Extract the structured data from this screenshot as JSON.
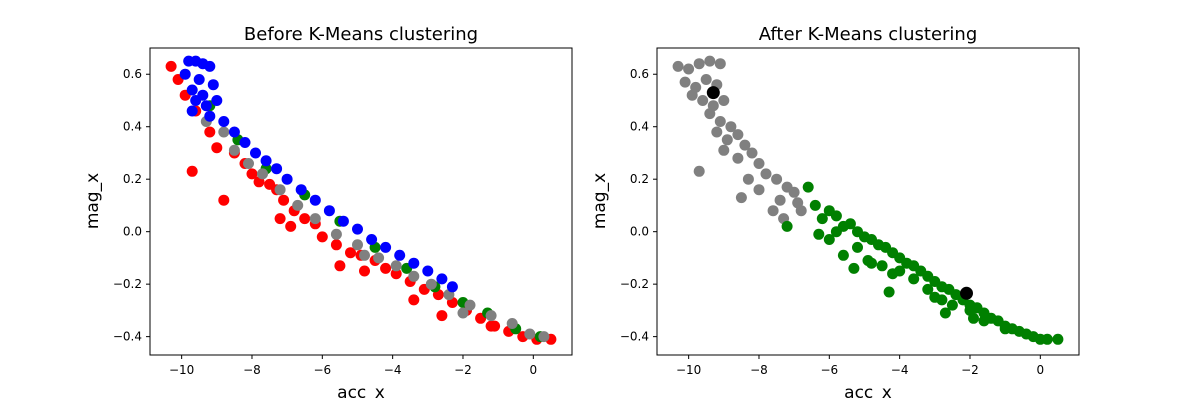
{
  "chart_data": [
    {
      "type": "scatter",
      "title": "Before K-Means clustering",
      "xlabel": "acc_x",
      "ylabel": "mag_x",
      "xlim": [
        -10.9,
        1.1
      ],
      "ylim": [
        -0.47,
        0.7
      ],
      "xticks": [
        -10,
        -8,
        -6,
        -4,
        -2,
        0
      ],
      "yticks": [
        -0.4,
        -0.2,
        0.0,
        0.2,
        0.4,
        0.6
      ],
      "xtick_labels": [
        "−10",
        "−8",
        "−6",
        "−4",
        "−2",
        "0"
      ],
      "ytick_labels": [
        "−0.4",
        "−0.2",
        "0.0",
        "0.2",
        "0.4",
        "0.6"
      ],
      "grid": false,
      "series": [
        {
          "color": "#ff0000",
          "points": [
            [
              -10.3,
              0.63
            ],
            [
              -10.1,
              0.58
            ],
            [
              -9.9,
              0.52
            ],
            [
              -9.6,
              0.46
            ],
            [
              -9.2,
              0.38
            ],
            [
              -9.0,
              0.32
            ],
            [
              -9.7,
              0.23
            ],
            [
              -8.5,
              0.3
            ],
            [
              -8.2,
              0.26
            ],
            [
              -8.0,
              0.22
            ],
            [
              -7.8,
              0.19
            ],
            [
              -7.5,
              0.18
            ],
            [
              -7.3,
              0.16
            ],
            [
              -7.1,
              0.12
            ],
            [
              -6.8,
              0.08
            ],
            [
              -6.5,
              0.05
            ],
            [
              -6.2,
              0.03
            ],
            [
              -6.0,
              -0.02
            ],
            [
              -5.6,
              -0.05
            ],
            [
              -5.2,
              -0.08
            ],
            [
              -4.9,
              -0.09
            ],
            [
              -4.5,
              -0.11
            ],
            [
              -4.2,
              -0.14
            ],
            [
              -3.9,
              -0.16
            ],
            [
              -3.5,
              -0.19
            ],
            [
              -3.1,
              -0.22
            ],
            [
              -2.7,
              -0.24
            ],
            [
              -2.3,
              -0.27
            ],
            [
              -1.9,
              -0.3
            ],
            [
              -1.5,
              -0.33
            ],
            [
              -1.1,
              -0.36
            ],
            [
              -0.7,
              -0.38
            ],
            [
              -0.3,
              -0.4
            ],
            [
              0.1,
              -0.41
            ],
            [
              0.5,
              -0.41
            ],
            [
              -7.2,
              0.05
            ],
            [
              -5.5,
              -0.13
            ],
            [
              -3.4,
              -0.26
            ],
            [
              -2.6,
              -0.32
            ],
            [
              -6.9,
              0.02
            ],
            [
              -8.8,
              0.12
            ],
            [
              -4.8,
              -0.15
            ],
            [
              -1.2,
              -0.36
            ]
          ]
        },
        {
          "color": "#008000",
          "points": [
            [
              -9.2,
              0.48
            ],
            [
              -8.4,
              0.35
            ],
            [
              -7.6,
              0.24
            ],
            [
              -6.5,
              0.14
            ],
            [
              -5.5,
              0.04
            ],
            [
              -4.5,
              -0.06
            ],
            [
              -3.6,
              -0.14
            ],
            [
              -2.8,
              -0.21
            ],
            [
              -2.0,
              -0.27
            ],
            [
              -1.3,
              -0.31
            ],
            [
              -0.5,
              -0.37
            ],
            [
              0.2,
              -0.4
            ]
          ]
        },
        {
          "color": "#808080",
          "points": [
            [
              -9.3,
              0.42
            ],
            [
              -8.8,
              0.38
            ],
            [
              -8.5,
              0.31
            ],
            [
              -8.1,
              0.26
            ],
            [
              -7.7,
              0.22
            ],
            [
              -7.2,
              0.16
            ],
            [
              -6.7,
              0.1
            ],
            [
              -6.2,
              0.05
            ],
            [
              -5.6,
              -0.01
            ],
            [
              -5.0,
              -0.05
            ],
            [
              -4.4,
              -0.1
            ],
            [
              -3.9,
              -0.13
            ],
            [
              -3.4,
              -0.17
            ],
            [
              -2.9,
              -0.2
            ],
            [
              -2.4,
              -0.24
            ],
            [
              -1.8,
              -0.28
            ],
            [
              -1.2,
              -0.32
            ],
            [
              -0.6,
              -0.35
            ],
            [
              -0.1,
              -0.39
            ],
            [
              0.3,
              -0.4
            ],
            [
              -4.8,
              -0.09
            ],
            [
              -2.0,
              -0.31
            ]
          ]
        },
        {
          "color": "#0000ff",
          "points": [
            [
              -9.8,
              0.65
            ],
            [
              -9.6,
              0.65
            ],
            [
              -9.4,
              0.64
            ],
            [
              -9.2,
              0.63
            ],
            [
              -9.9,
              0.6
            ],
            [
              -9.5,
              0.58
            ],
            [
              -9.1,
              0.56
            ],
            [
              -9.7,
              0.54
            ],
            [
              -9.4,
              0.52
            ],
            [
              -9.6,
              0.5
            ],
            [
              -9.3,
              0.48
            ],
            [
              -9.0,
              0.5
            ],
            [
              -9.7,
              0.46
            ],
            [
              -9.2,
              0.44
            ],
            [
              -8.8,
              0.42
            ],
            [
              -8.5,
              0.38
            ],
            [
              -8.2,
              0.34
            ],
            [
              -7.9,
              0.3
            ],
            [
              -7.6,
              0.27
            ],
            [
              -7.3,
              0.24
            ],
            [
              -7.0,
              0.2
            ],
            [
              -6.6,
              0.16
            ],
            [
              -6.2,
              0.12
            ],
            [
              -5.8,
              0.08
            ],
            [
              -5.4,
              0.04
            ],
            [
              -5.0,
              0.01
            ],
            [
              -4.6,
              -0.03
            ],
            [
              -4.2,
              -0.06
            ],
            [
              -3.8,
              -0.09
            ],
            [
              -3.4,
              -0.12
            ],
            [
              -3.0,
              -0.15
            ],
            [
              -2.6,
              -0.18
            ],
            [
              -2.3,
              -0.21
            ]
          ]
        }
      ]
    },
    {
      "type": "scatter",
      "title": "After K-Means clustering",
      "xlabel": "acc_x",
      "ylabel": "mag_x",
      "xlim": [
        -10.9,
        1.1
      ],
      "ylim": [
        -0.47,
        0.7
      ],
      "xticks": [
        -10,
        -8,
        -6,
        -4,
        -2,
        0
      ],
      "yticks": [
        -0.4,
        -0.2,
        0.0,
        0.2,
        0.4,
        0.6
      ],
      "xtick_labels": [
        "−10",
        "−8",
        "−6",
        "−4",
        "−2",
        "0"
      ],
      "ytick_labels": [
        "−0.4",
        "−0.2",
        "0.0",
        "0.2",
        "0.4",
        "0.6"
      ],
      "grid": false,
      "series": [
        {
          "color": "#808080",
          "points": [
            [
              -10.3,
              0.63
            ],
            [
              -10.0,
              0.62
            ],
            [
              -9.7,
              0.64
            ],
            [
              -9.4,
              0.65
            ],
            [
              -9.1,
              0.64
            ],
            [
              -10.1,
              0.57
            ],
            [
              -9.8,
              0.55
            ],
            [
              -9.5,
              0.58
            ],
            [
              -9.2,
              0.56
            ],
            [
              -9.9,
              0.52
            ],
            [
              -9.6,
              0.5
            ],
            [
              -9.3,
              0.48
            ],
            [
              -9.0,
              0.5
            ],
            [
              -9.4,
              0.45
            ],
            [
              -9.1,
              0.42
            ],
            [
              -8.8,
              0.4
            ],
            [
              -8.6,
              0.37
            ],
            [
              -8.9,
              0.35
            ],
            [
              -9.2,
              0.38
            ],
            [
              -8.4,
              0.33
            ],
            [
              -8.2,
              0.3
            ],
            [
              -8.6,
              0.28
            ],
            [
              -9.0,
              0.31
            ],
            [
              -9.7,
              0.23
            ],
            [
              -8.0,
              0.26
            ],
            [
              -7.8,
              0.22
            ],
            [
              -8.3,
              0.2
            ],
            [
              -7.5,
              0.2
            ],
            [
              -7.2,
              0.17
            ],
            [
              -7.0,
              0.15
            ],
            [
              -7.4,
              0.12
            ],
            [
              -6.9,
              0.11
            ],
            [
              -8.0,
              0.16
            ],
            [
              -7.6,
              0.08
            ],
            [
              -7.3,
              0.05
            ],
            [
              -6.8,
              0.08
            ],
            [
              -8.5,
              0.13
            ]
          ]
        },
        {
          "color": "#008000",
          "points": [
            [
              -6.6,
              0.17
            ],
            [
              -6.4,
              0.1
            ],
            [
              -6.2,
              0.05
            ],
            [
              -6.0,
              0.08
            ],
            [
              -5.8,
              0.06
            ],
            [
              -5.6,
              0.02
            ],
            [
              -5.4,
              0.03
            ],
            [
              -5.2,
              0.0
            ],
            [
              -5.0,
              -0.02
            ],
            [
              -4.8,
              -0.03
            ],
            [
              -4.6,
              -0.05
            ],
            [
              -4.4,
              -0.06
            ],
            [
              -4.2,
              -0.08
            ],
            [
              -4.0,
              -0.1
            ],
            [
              -3.8,
              -0.12
            ],
            [
              -3.6,
              -0.13
            ],
            [
              -3.4,
              -0.15
            ],
            [
              -3.2,
              -0.17
            ],
            [
              -3.0,
              -0.19
            ],
            [
              -2.8,
              -0.21
            ],
            [
              -2.6,
              -0.22
            ],
            [
              -2.4,
              -0.24
            ],
            [
              -2.2,
              -0.26
            ],
            [
              -2.0,
              -0.28
            ],
            [
              -1.8,
              -0.29
            ],
            [
              -1.6,
              -0.31
            ],
            [
              -1.4,
              -0.33
            ],
            [
              -1.2,
              -0.34
            ],
            [
              -1.0,
              -0.36
            ],
            [
              -0.8,
              -0.37
            ],
            [
              -0.6,
              -0.38
            ],
            [
              -0.4,
              -0.39
            ],
            [
              -0.2,
              -0.4
            ],
            [
              0.0,
              -0.41
            ],
            [
              0.2,
              -0.41
            ],
            [
              0.5,
              -0.41
            ],
            [
              -7.2,
              0.02
            ],
            [
              -6.3,
              -0.01
            ],
            [
              -5.2,
              -0.06
            ],
            [
              -5.6,
              -0.09
            ],
            [
              -4.9,
              -0.11
            ],
            [
              -4.5,
              -0.13
            ],
            [
              -4.2,
              -0.16
            ],
            [
              -3.6,
              -0.18
            ],
            [
              -3.2,
              -0.22
            ],
            [
              -2.8,
              -0.26
            ],
            [
              -2.5,
              -0.28
            ],
            [
              -2.0,
              -0.3
            ],
            [
              -1.6,
              -0.34
            ],
            [
              -3.0,
              -0.25
            ],
            [
              -4.3,
              -0.23
            ],
            [
              -5.3,
              -0.14
            ],
            [
              -4.8,
              -0.12
            ],
            [
              -2.7,
              -0.31
            ],
            [
              -1.9,
              -0.33
            ],
            [
              -1.0,
              -0.37
            ],
            [
              -6.0,
              -0.03
            ],
            [
              -5.8,
              0.0
            ],
            [
              -4.0,
              -0.15
            ]
          ]
        },
        {
          "color": "#000000",
          "points": [
            [
              -9.3,
              0.53
            ],
            [
              -2.1,
              -0.235
            ]
          ]
        }
      ]
    }
  ]
}
